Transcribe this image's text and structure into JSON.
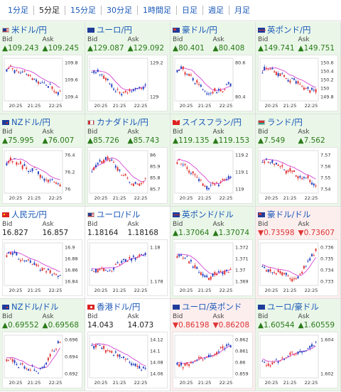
{
  "tabs": [
    "1分足",
    "5分足",
    "15分足",
    "30分足",
    "1時間足",
    "日足",
    "週足",
    "月足"
  ],
  "active_tab": 1,
  "labels": {
    "bid": "Bid",
    "ask": "Ask"
  },
  "colors": {
    "up": "#2a7a1a",
    "down": "#d33333",
    "bull": "#e03030",
    "bear": "#2040c0",
    "ma": "#d030d0",
    "green_bg": "#eaf7e8",
    "red_bg": "#fdeeee"
  },
  "pairs": [
    {
      "name": "米ドル/円",
      "flag": "us",
      "bg": "green",
      "bid": "▲109.243",
      "ask": "▲109.245",
      "dir": "up",
      "ticks": [
        "109.8",
        "109.6",
        "109.4"
      ],
      "x_ticks": [
        "20:25",
        "21:25",
        "22:25"
      ],
      "trend": "down"
    },
    {
      "name": "ユーロ/円",
      "flag": "eu",
      "bg": "green",
      "bid": "▲129.087",
      "ask": "▲129.092",
      "dir": "up",
      "ticks": [
        "129.2",
        "129"
      ],
      "x_ticks": [
        "20:25",
        "21:25",
        "22:25"
      ],
      "trend": "vdown"
    },
    {
      "name": "豪ドル/円",
      "flag": "au",
      "bg": "green",
      "bid": "▲80.401",
      "ask": "▲80.408",
      "dir": "up",
      "ticks": [
        "80.6",
        "80.4"
      ],
      "x_ticks": [
        "20:25",
        "21:25",
        "22:25"
      ],
      "trend": "vdown"
    },
    {
      "name": "英ポンド/円",
      "flag": "gb",
      "bg": "green",
      "bid": "▲149.741",
      "ask": "▲149.751",
      "dir": "up",
      "ticks": [
        "150.6",
        "150.4",
        "150.2",
        "150",
        "149.8"
      ],
      "x_ticks": [
        "20:25",
        "21:25",
        "22:25"
      ],
      "trend": "down"
    },
    {
      "name": "NZドル/円",
      "flag": "nz",
      "bg": "green",
      "bid": "▲75.995",
      "ask": "▲76.007",
      "dir": "up",
      "ticks": [
        "76.4",
        "76.2",
        "76"
      ],
      "x_ticks": [
        "20:25",
        "21:25",
        "22:25"
      ],
      "trend": "down"
    },
    {
      "name": "カナダドル/円",
      "flag": "ca",
      "bg": "green",
      "bid": "▲85.726",
      "ask": "▲85.743",
      "dir": "up",
      "ticks": [
        "86",
        "85.9",
        "85.8",
        "85.7"
      ],
      "x_ticks": [
        "20:25",
        "21:25",
        "22:25"
      ],
      "trend": "mixed"
    },
    {
      "name": "スイスフラン/円",
      "flag": "ch",
      "bg": "green",
      "bid": "▲119.135",
      "ask": "▲119.153",
      "dir": "up",
      "ticks": [
        "119.2",
        "119.1",
        "119"
      ],
      "x_ticks": [
        "20:25",
        "21:25",
        "22:25"
      ],
      "trend": "vdown"
    },
    {
      "name": "ランド/円",
      "flag": "za",
      "bg": "green",
      "bid": "▲7.549",
      "ask": "▲7.562",
      "dir": "up",
      "ticks": [
        "7.57",
        "7.56",
        "7.55",
        "7.54"
      ],
      "x_ticks": [
        "20:25",
        "21:25",
        "22:25"
      ],
      "trend": "down"
    },
    {
      "name": "人民元/円",
      "flag": "cn",
      "bg": "white",
      "bid": "16.827",
      "ask": "16.857",
      "dir": "flat",
      "ticks": [
        "16.9",
        "16.88",
        "16.86",
        "16.84"
      ],
      "x_ticks": [
        "20:25",
        "21:25",
        "22:25"
      ],
      "trend": "down"
    },
    {
      "name": "ユーロ/ドル",
      "flag": "us",
      "bg": "white",
      "bid": "1.18164",
      "ask": "1.18168",
      "dir": "flat",
      "ticks": [
        "1.18",
        "1.178"
      ],
      "x_ticks": [
        "20:25",
        "21:25",
        "22:25"
      ],
      "trend": "up"
    },
    {
      "name": "英ポンド/ドル",
      "flag": "gb",
      "bg": "green",
      "bid": "▲1.37064",
      "ask": "▲1.37074",
      "dir": "up",
      "ticks": [
        "1.372",
        "1.371",
        "1.37",
        "1.369"
      ],
      "x_ticks": [
        "20:25",
        "21:25",
        "22:25"
      ],
      "trend": "vdown"
    },
    {
      "name": "豪ドル/ドル",
      "flag": "au",
      "bg": "red",
      "bid": "▼0.73598",
      "ask": "▼0.73607",
      "dir": "down",
      "ticks": [
        "0.736",
        "0.735",
        "0.734",
        "0.733"
      ],
      "x_ticks": [
        "20:25",
        "21:25",
        "22:25"
      ],
      "trend": "vup"
    },
    {
      "name": "NZドル/ドル",
      "flag": "nz",
      "bg": "green",
      "bid": "▲0.69552",
      "ask": "▲0.69568",
      "dir": "up",
      "ticks": [
        "0.696",
        "0.694",
        "0.692"
      ],
      "x_ticks": [
        "20:25",
        "21:25",
        "22:25"
      ],
      "trend": "vup"
    },
    {
      "name": "香港ドル/円",
      "flag": "hk",
      "bg": "white",
      "bid": "14.043",
      "ask": "14.073",
      "dir": "flat",
      "ticks": [
        "14.12",
        "14.1",
        "14.08",
        "14.06"
      ],
      "x_ticks": [
        "20:25",
        "21:25",
        "22:25"
      ],
      "trend": "down"
    },
    {
      "name": "ユーロ/英ポンド",
      "flag": "eu",
      "bg": "red",
      "bid": "▼0.86198",
      "ask": "▼0.86208",
      "dir": "down",
      "ticks": [
        "0.862",
        "0.861",
        "0.86",
        "0.859"
      ],
      "x_ticks": [
        "20:25",
        "21:25",
        "22:25"
      ],
      "trend": "up"
    },
    {
      "name": "ユーロ/豪ドル",
      "flag": "eu",
      "bg": "green",
      "bid": "▲1.60544",
      "ask": "▲1.60559",
      "dir": "up",
      "ticks": [
        "1.604",
        "1.602"
      ],
      "x_ticks": [
        "20:25",
        "21:25",
        "22:25"
      ],
      "trend": "up"
    }
  ]
}
